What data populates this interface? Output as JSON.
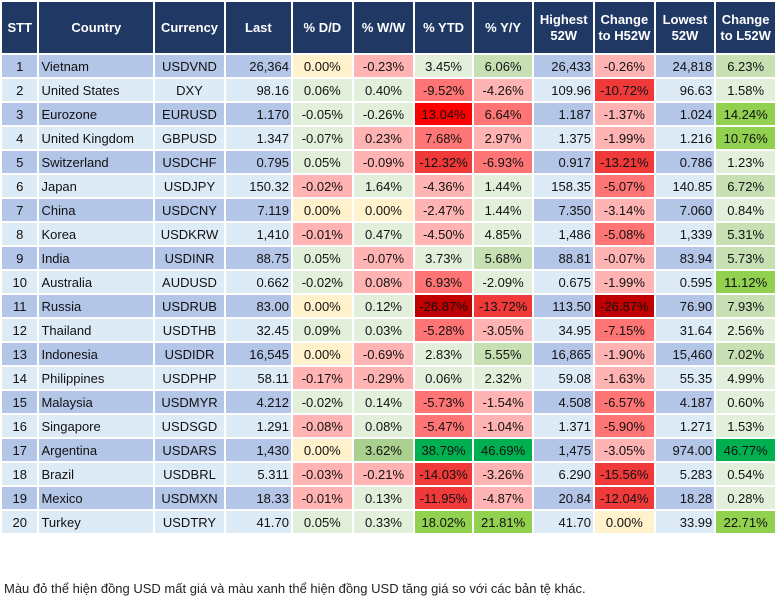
{
  "headers": [
    "STT",
    "Country",
    "Currency",
    "Last",
    "% D/D",
    "% W/W",
    "% YTD",
    "% Y/Y",
    "Highest 52W",
    "Change to H52W",
    "Lowest 52W",
    "Change to L52W"
  ],
  "colors": {
    "header_bg": "#203864",
    "row_odd": "#b4c6e7",
    "row_even": "#ddebf7",
    "y": "#fff2cc",
    "g1": "#e2efda",
    "g2": "#c6e0b4",
    "g2b": "#a9d08e",
    "g3": "#92d050",
    "g4": "#00b050",
    "r1": "#ffb3b3",
    "r2": "#ff7575",
    "r3": "#f03a3a",
    "r4": "#ff0000",
    "r5": "#c00000"
  },
  "rows": [
    {
      "stt": "1",
      "country": "Vietnam",
      "currency": "USDVND",
      "last": "26,364",
      "dd": "0.00%",
      "ww": "-0.23%",
      "ytd": "3.45%",
      "yy": "6.06%",
      "h52": "26,433",
      "chh": "-0.26%",
      "l52": "24,818",
      "chl": "6.23%",
      "colors": [
        "y",
        "r1",
        "g1",
        "g2",
        "r1",
        "g2"
      ]
    },
    {
      "stt": "2",
      "country": "United States",
      "currency": "DXY",
      "last": "98.16",
      "dd": "0.06%",
      "ww": "0.40%",
      "ytd": "-9.52%",
      "yy": "-4.26%",
      "h52": "109.96",
      "chh": "-10.72%",
      "l52": "96.63",
      "chl": "1.58%",
      "colors": [
        "g1",
        "g1",
        "r2",
        "r1",
        "r3",
        "g1"
      ]
    },
    {
      "stt": "3",
      "country": "Eurozone",
      "currency": "EURUSD",
      "last": "1.170",
      "dd": "-0.05%",
      "ww": "-0.26%",
      "ytd": "13.04%",
      "yy": "6.64%",
      "h52": "1.187",
      "chh": "-1.37%",
      "l52": "1.024",
      "chl": "14.24%",
      "colors": [
        "g1",
        "g1",
        "r4",
        "r2",
        "r1",
        "g3"
      ]
    },
    {
      "stt": "4",
      "country": "United Kingdom",
      "currency": "GBPUSD",
      "last": "1.347",
      "dd": "-0.07%",
      "ww": "0.23%",
      "ytd": "7.68%",
      "yy": "2.97%",
      "h52": "1.375",
      "chh": "-1.99%",
      "l52": "1.216",
      "chl": "10.76%",
      "colors": [
        "g1",
        "r1",
        "r2",
        "r1",
        "r1",
        "g3"
      ]
    },
    {
      "stt": "5",
      "country": "Switzerland",
      "currency": "USDCHF",
      "last": "0.795",
      "dd": "0.05%",
      "ww": "-0.09%",
      "ytd": "-12.32%",
      "yy": "-6.93%",
      "h52": "0.917",
      "chh": "-13.21%",
      "l52": "0.786",
      "chl": "1.23%",
      "colors": [
        "g1",
        "r1",
        "r3",
        "r2",
        "r3",
        "g1"
      ]
    },
    {
      "stt": "6",
      "country": "Japan",
      "currency": "USDJPY",
      "last": "150.32",
      "dd": "-0.02%",
      "ww": "1.64%",
      "ytd": "-4.36%",
      "yy": "1.44%",
      "h52": "158.35",
      "chh": "-5.07%",
      "l52": "140.85",
      "chl": "6.72%",
      "colors": [
        "r1",
        "g1",
        "r1",
        "g1",
        "r2",
        "g2"
      ]
    },
    {
      "stt": "7",
      "country": "China",
      "currency": "USDCNY",
      "last": "7.119",
      "dd": "0.00%",
      "ww": "0.00%",
      "ytd": "-2.47%",
      "yy": "1.44%",
      "h52": "7.350",
      "chh": "-3.14%",
      "l52": "7.060",
      "chl": "0.84%",
      "colors": [
        "y",
        "y",
        "r1",
        "g1",
        "r1",
        "g1"
      ]
    },
    {
      "stt": "8",
      "country": "Korea",
      "currency": "USDKRW",
      "last": "1,410",
      "dd": "-0.01%",
      "ww": "0.47%",
      "ytd": "-4.50%",
      "yy": "4.85%",
      "h52": "1,486",
      "chh": "-5.08%",
      "l52": "1,339",
      "chl": "5.31%",
      "colors": [
        "r1",
        "g1",
        "r1",
        "g1",
        "r2",
        "g2"
      ]
    },
    {
      "stt": "9",
      "country": "India",
      "currency": "USDINR",
      "last": "88.75",
      "dd": "0.05%",
      "ww": "-0.07%",
      "ytd": "3.73%",
      "yy": "5.68%",
      "h52": "88.81",
      "chh": "-0.07%",
      "l52": "83.94",
      "chl": "5.73%",
      "colors": [
        "g1",
        "r1",
        "g1",
        "g2",
        "r1",
        "g2"
      ]
    },
    {
      "stt": "10",
      "country": "Australia",
      "currency": "AUDUSD",
      "last": "0.662",
      "dd": "-0.02%",
      "ww": "0.08%",
      "ytd": "6.93%",
      "yy": "-2.09%",
      "h52": "0.675",
      "chh": "-1.99%",
      "l52": "0.595",
      "chl": "11.12%",
      "colors": [
        "g1",
        "r1",
        "r2",
        "g1",
        "r1",
        "g3"
      ]
    },
    {
      "stt": "11",
      "country": "Russia",
      "currency": "USDRUB",
      "last": "83.00",
      "dd": "0.00%",
      "ww": "0.12%",
      "ytd": "-26.87%",
      "yy": "-13.72%",
      "h52": "113.50",
      "chh": "-26.87%",
      "l52": "76.90",
      "chl": "7.93%",
      "colors": [
        "y",
        "g1",
        "r5",
        "r3",
        "r5",
        "g2"
      ]
    },
    {
      "stt": "12",
      "country": "Thailand",
      "currency": "USDTHB",
      "last": "32.45",
      "dd": "0.09%",
      "ww": "0.03%",
      "ytd": "-5.28%",
      "yy": "-3.05%",
      "h52": "34.95",
      "chh": "-7.15%",
      "l52": "31.64",
      "chl": "2.56%",
      "colors": [
        "g1",
        "g1",
        "r2",
        "r1",
        "r2",
        "g1"
      ]
    },
    {
      "stt": "13",
      "country": "Indonesia",
      "currency": "USDIDR",
      "last": "16,545",
      "dd": "0.00%",
      "ww": "-0.69%",
      "ytd": "2.83%",
      "yy": "5.55%",
      "h52": "16,865",
      "chh": "-1.90%",
      "l52": "15,460",
      "chl": "7.02%",
      "colors": [
        "y",
        "r1",
        "g1",
        "g2",
        "r1",
        "g2"
      ]
    },
    {
      "stt": "14",
      "country": "Philippines",
      "currency": "USDPHP",
      "last": "58.11",
      "dd": "-0.17%",
      "ww": "-0.29%",
      "ytd": "0.06%",
      "yy": "2.32%",
      "h52": "59.08",
      "chh": "-1.63%",
      "l52": "55.35",
      "chl": "4.99%",
      "colors": [
        "r1",
        "r1",
        "g1",
        "g1",
        "r1",
        "g1"
      ]
    },
    {
      "stt": "15",
      "country": "Malaysia",
      "currency": "USDMYR",
      "last": "4.212",
      "dd": "-0.02%",
      "ww": "0.14%",
      "ytd": "-5.73%",
      "yy": "-1.54%",
      "h52": "4.508",
      "chh": "-6.57%",
      "l52": "4.187",
      "chl": "0.60%",
      "colors": [
        "g1",
        "g1",
        "r2",
        "r1",
        "r2",
        "g1"
      ]
    },
    {
      "stt": "16",
      "country": "Singapore",
      "currency": "USDSGD",
      "last": "1.291",
      "dd": "-0.08%",
      "ww": "0.08%",
      "ytd": "-5.47%",
      "yy": "-1.04%",
      "h52": "1.371",
      "chh": "-5.90%",
      "l52": "1.271",
      "chl": "1.53%",
      "colors": [
        "r1",
        "g1",
        "r2",
        "r1",
        "r2",
        "g1"
      ]
    },
    {
      "stt": "17",
      "country": "Argentina",
      "currency": "USDARS",
      "last": "1,430",
      "dd": "0.00%",
      "ww": "3.62%",
      "ytd": "38.79%",
      "yy": "46.69%",
      "h52": "1,475",
      "chh": "-3.05%",
      "l52": "974.00",
      "chl": "46.77%",
      "colors": [
        "y",
        "g2b",
        "g4",
        "g4",
        "r1",
        "g4"
      ]
    },
    {
      "stt": "18",
      "country": "Brazil",
      "currency": "USDBRL",
      "last": "5.311",
      "dd": "-0.03%",
      "ww": "-0.21%",
      "ytd": "-14.03%",
      "yy": "-3.26%",
      "h52": "6.290",
      "chh": "-15.56%",
      "l52": "5.283",
      "chl": "0.54%",
      "colors": [
        "r1",
        "r1",
        "r3",
        "r1",
        "r3",
        "g1"
      ]
    },
    {
      "stt": "19",
      "country": "Mexico",
      "currency": "USDMXN",
      "last": "18.33",
      "dd": "-0.01%",
      "ww": "0.13%",
      "ytd": "-11.95%",
      "yy": "-4.87%",
      "h52": "20.84",
      "chh": "-12.04%",
      "l52": "18.28",
      "chl": "0.28%",
      "colors": [
        "r1",
        "g1",
        "r3",
        "r1",
        "r3",
        "g1"
      ]
    },
    {
      "stt": "20",
      "country": "Turkey",
      "currency": "USDTRY",
      "last": "41.70",
      "dd": "0.05%",
      "ww": "0.33%",
      "ytd": "18.02%",
      "yy": "21.81%",
      "h52": "41.70",
      "chh": "0.00%",
      "l52": "33.99",
      "chl": "22.71%",
      "colors": [
        "g1",
        "g1",
        "g3",
        "g3",
        "y",
        "g3"
      ]
    }
  ],
  "footnote": "Màu đỏ thể hiện đồng USD mất giá và màu xanh thể hiện đồng USD tăng giá so với các bản tệ khác."
}
